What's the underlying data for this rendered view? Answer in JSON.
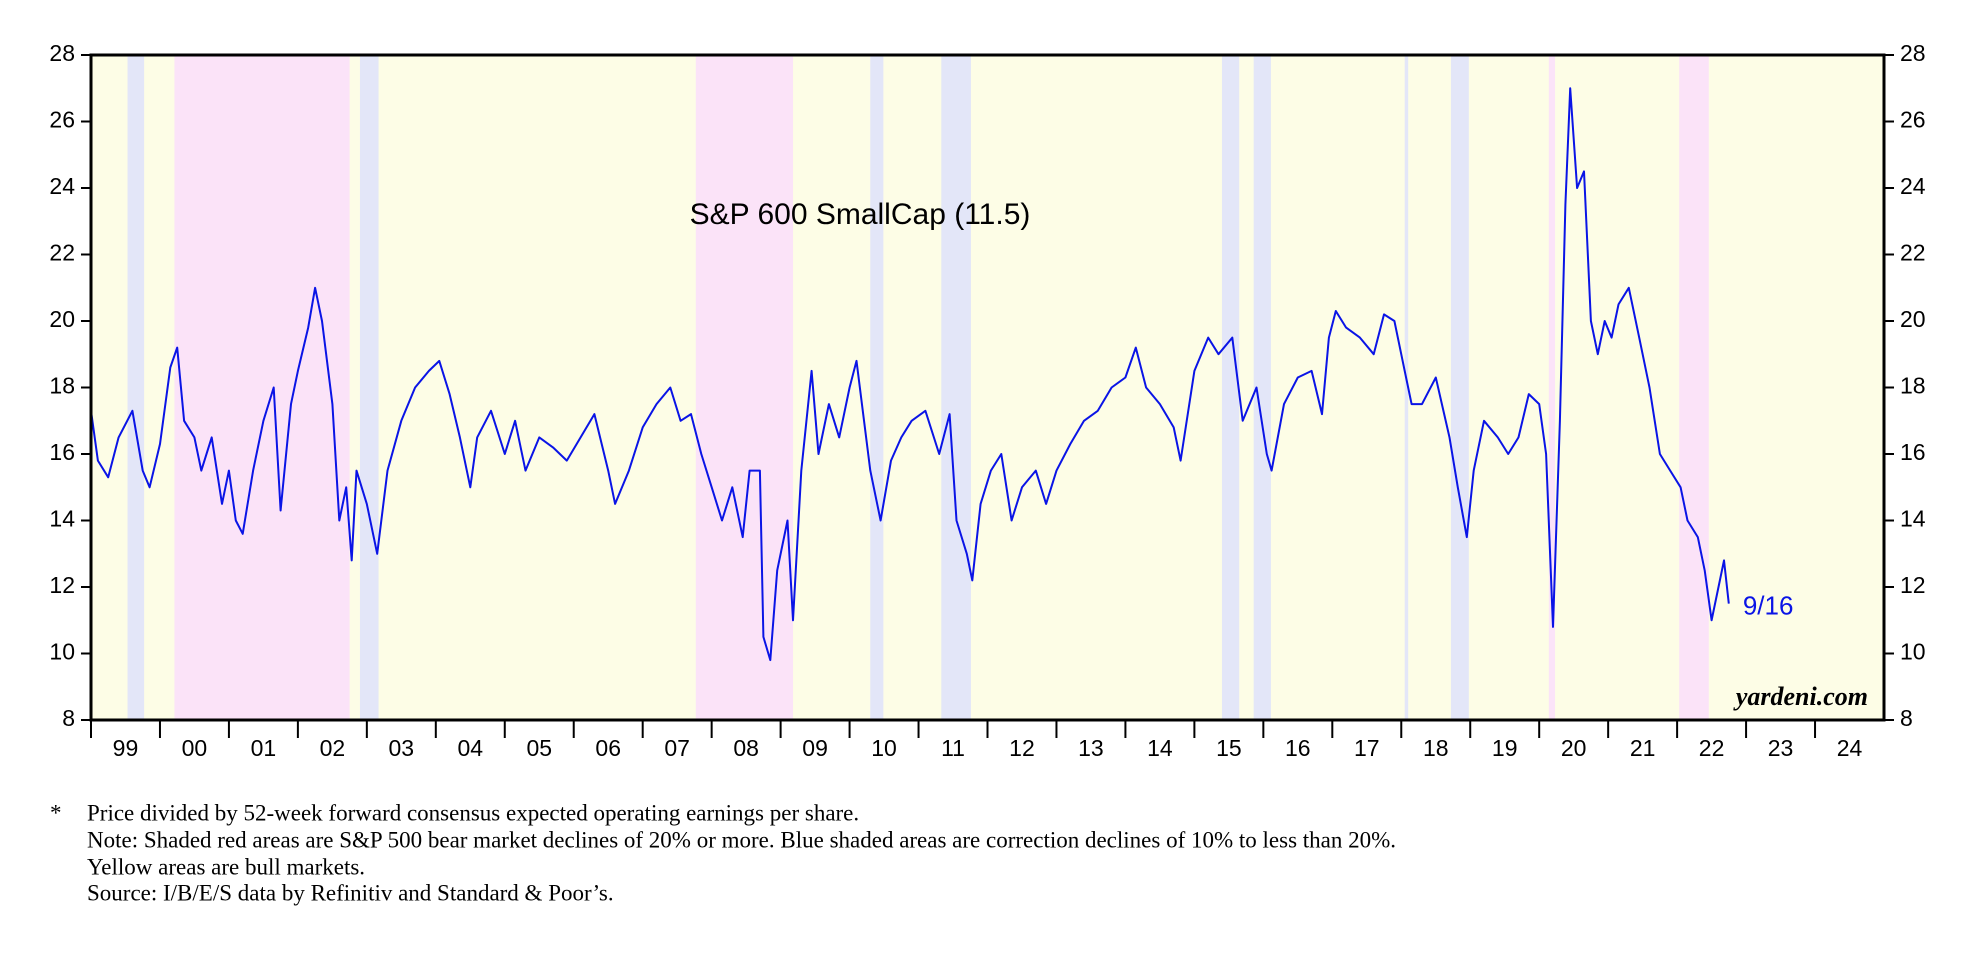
{
  "chart_data": {
    "type": "line",
    "title": "S&P 600 SmallCap (11.5)",
    "end_label": "9/16",
    "watermark": "yardeni.com",
    "color": "#0a14e6",
    "background": "#fdfde6",
    "bands": [
      {
        "start": 1999.53,
        "end": 1999.77,
        "color": "#e3e6f8"
      },
      {
        "start": 2000.21,
        "end": 2002.75,
        "color": "#fbe3f8"
      },
      {
        "start": 2002.9,
        "end": 2003.17,
        "color": "#e3e6f8"
      },
      {
        "start": 2007.77,
        "end": 2009.18,
        "color": "#fbe3f8"
      },
      {
        "start": 2010.3,
        "end": 2010.49,
        "color": "#e3e6f8"
      },
      {
        "start": 2011.33,
        "end": 2011.76,
        "color": "#e3e6f8"
      },
      {
        "start": 2015.4,
        "end": 2015.65,
        "color": "#e3e6f8"
      },
      {
        "start": 2015.86,
        "end": 2016.11,
        "color": "#e3e6f8"
      },
      {
        "start": 2018.05,
        "end": 2018.1,
        "color": "#e3e6f8"
      },
      {
        "start": 2018.72,
        "end": 2018.98,
        "color": "#e3e6f8"
      },
      {
        "start": 2020.14,
        "end": 2020.23,
        "color": "#fbe3f8"
      },
      {
        "start": 2022.03,
        "end": 2022.46,
        "color": "#fbe3f8"
      }
    ],
    "x": [
      1999.0,
      1999.1,
      1999.25,
      1999.4,
      1999.6,
      1999.75,
      1999.85,
      2000.0,
      2000.15,
      2000.25,
      2000.35,
      2000.5,
      2000.6,
      2000.75,
      2000.9,
      2001.0,
      2001.1,
      2001.2,
      2001.35,
      2001.5,
      2001.65,
      2001.75,
      2001.9,
      2002.0,
      2002.15,
      2002.25,
      2002.35,
      2002.5,
      2002.6,
      2002.7,
      2002.78,
      2002.85,
      2003.0,
      2003.15,
      2003.3,
      2003.5,
      2003.7,
      2003.9,
      2004.05,
      2004.2,
      2004.35,
      2004.5,
      2004.6,
      2004.8,
      2005.0,
      2005.15,
      2005.3,
      2005.5,
      2005.7,
      2005.9,
      2006.1,
      2006.3,
      2006.5,
      2006.6,
      2006.8,
      2007.0,
      2007.2,
      2007.4,
      2007.55,
      2007.7,
      2007.85,
      2008.0,
      2008.15,
      2008.3,
      2008.45,
      2008.55,
      2008.7,
      2008.75,
      2008.85,
      2008.95,
      2009.1,
      2009.18,
      2009.3,
      2009.45,
      2009.55,
      2009.7,
      2009.85,
      2010.0,
      2010.1,
      2010.3,
      2010.45,
      2010.6,
      2010.75,
      2010.9,
      2011.1,
      2011.3,
      2011.45,
      2011.55,
      2011.7,
      2011.78,
      2011.9,
      2012.05,
      2012.2,
      2012.35,
      2012.5,
      2012.7,
      2012.85,
      2013.0,
      2013.2,
      2013.4,
      2013.6,
      2013.8,
      2014.0,
      2014.15,
      2014.3,
      2014.5,
      2014.7,
      2014.8,
      2015.0,
      2015.2,
      2015.35,
      2015.55,
      2015.7,
      2015.9,
      2016.05,
      2016.12,
      2016.3,
      2016.5,
      2016.7,
      2016.85,
      2016.95,
      2017.05,
      2017.2,
      2017.4,
      2017.6,
      2017.75,
      2017.9,
      2018.05,
      2018.15,
      2018.3,
      2018.5,
      2018.7,
      2018.82,
      2018.95,
      2019.05,
      2019.2,
      2019.4,
      2019.55,
      2019.7,
      2019.85,
      2020.0,
      2020.1,
      2020.2,
      2020.3,
      2020.38,
      2020.45,
      2020.55,
      2020.65,
      2020.75,
      2020.85,
      2020.95,
      2021.05,
      2021.15,
      2021.3,
      2021.45,
      2021.6,
      2021.75,
      2021.9,
      2022.05,
      2022.15,
      2022.3,
      2022.4,
      2022.5,
      2022.6,
      2022.68,
      2022.75
    ],
    "values": [
      17.3,
      15.8,
      15.3,
      16.5,
      17.3,
      15.5,
      15.0,
      16.3,
      18.6,
      19.2,
      17.0,
      16.5,
      15.5,
      16.5,
      14.5,
      15.5,
      14.0,
      13.6,
      15.5,
      17.0,
      18.0,
      14.3,
      17.5,
      18.5,
      19.8,
      21.0,
      20.0,
      17.5,
      14.0,
      15.0,
      12.8,
      15.5,
      14.5,
      13.0,
      15.5,
      17.0,
      18.0,
      18.5,
      18.8,
      17.8,
      16.5,
      15.0,
      16.5,
      17.3,
      16.0,
      17.0,
      15.5,
      16.5,
      16.2,
      15.8,
      16.5,
      17.2,
      15.5,
      14.5,
      15.5,
      16.8,
      17.5,
      18.0,
      17.0,
      17.2,
      16.0,
      15.0,
      14.0,
      15.0,
      13.5,
      15.5,
      15.5,
      10.5,
      9.8,
      12.5,
      14.0,
      11.0,
      15.5,
      18.5,
      16.0,
      17.5,
      16.5,
      18.0,
      18.8,
      15.5,
      14.0,
      15.8,
      16.5,
      17.0,
      17.3,
      16.0,
      17.2,
      14.0,
      13.0,
      12.2,
      14.5,
      15.5,
      16.0,
      14.0,
      15.0,
      15.5,
      14.5,
      15.5,
      16.3,
      17.0,
      17.3,
      18.0,
      18.3,
      19.2,
      18.0,
      17.5,
      16.8,
      15.8,
      18.5,
      19.5,
      19.0,
      19.5,
      17.0,
      18.0,
      16.0,
      15.5,
      17.5,
      18.3,
      18.5,
      17.2,
      19.5,
      20.3,
      19.8,
      19.5,
      19.0,
      20.2,
      20.0,
      18.5,
      17.5,
      17.5,
      18.3,
      16.5,
      15.0,
      13.5,
      15.5,
      17.0,
      16.5,
      16.0,
      16.5,
      17.8,
      17.5,
      16.0,
      10.8,
      17.0,
      23.5,
      27.0,
      24.0,
      24.5,
      20.0,
      19.0,
      20.0,
      19.5,
      20.5,
      21.0,
      19.5,
      18.0,
      16.0,
      15.5,
      15.0,
      14.0,
      13.5,
      12.5,
      11.0,
      12.0,
      12.8,
      11.5
    ],
    "xlim": [
      1999,
      2025
    ],
    "xticks": [
      {
        "value": 1999,
        "label": "99"
      },
      {
        "value": 2000,
        "label": "00"
      },
      {
        "value": 2001,
        "label": "01"
      },
      {
        "value": 2002,
        "label": "02"
      },
      {
        "value": 2003,
        "label": "03"
      },
      {
        "value": 2004,
        "label": "04"
      },
      {
        "value": 2005,
        "label": "05"
      },
      {
        "value": 2006,
        "label": "06"
      },
      {
        "value": 2007,
        "label": "07"
      },
      {
        "value": 2008,
        "label": "08"
      },
      {
        "value": 2009,
        "label": "09"
      },
      {
        "value": 2010,
        "label": "10"
      },
      {
        "value": 2011,
        "label": "11"
      },
      {
        "value": 2012,
        "label": "12"
      },
      {
        "value": 2013,
        "label": "13"
      },
      {
        "value": 2014,
        "label": "14"
      },
      {
        "value": 2015,
        "label": "15"
      },
      {
        "value": 2016,
        "label": "16"
      },
      {
        "value": 2017,
        "label": "17"
      },
      {
        "value": 2018,
        "label": "18"
      },
      {
        "value": 2019,
        "label": "19"
      },
      {
        "value": 2020,
        "label": "20"
      },
      {
        "value": 2021,
        "label": "21"
      },
      {
        "value": 2022,
        "label": "22"
      },
      {
        "value": 2023,
        "label": "23"
      },
      {
        "value": 2024,
        "label": "24"
      }
    ],
    "ylim": [
      8,
      28
    ],
    "yticks": [
      8,
      10,
      12,
      14,
      16,
      18,
      20,
      22,
      24,
      26,
      28
    ],
    "y2lim": [
      8,
      28
    ],
    "y2ticks": [
      8,
      10,
      12,
      14,
      16,
      18,
      20,
      22,
      24,
      26,
      28
    ],
    "notes": [
      "*",
      "Price divided by 52-week forward consensus expected operating earnings per share.",
      "Note: Shaded red areas are S&P 500 bear market declines of 20% or more.  Blue shaded areas are correction declines of 10% to less than 20%.",
      "Yellow areas are bull markets.",
      "Source: I/B/E/S data by Refinitiv and Standard & Poor’s."
    ]
  }
}
